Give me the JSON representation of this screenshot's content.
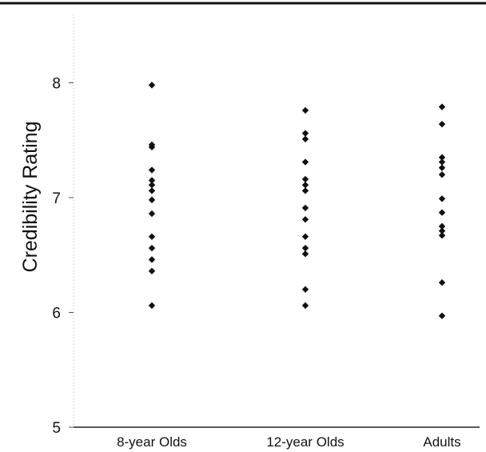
{
  "chart_data": {
    "type": "scatter",
    "title": "",
    "xlabel": "",
    "ylabel": "Credibility Rating",
    "categories": [
      "8-year Olds",
      "12-year Olds",
      "Adults"
    ],
    "ylim": [
      5,
      8.6
    ],
    "yticks": [
      5,
      6,
      7,
      8
    ],
    "grid": false,
    "legend": "none",
    "marker": "diamond",
    "marker_color": "#111111",
    "series": [
      {
        "category": "8-year Olds",
        "values": [
          7.98,
          7.46,
          7.44,
          7.24,
          7.15,
          7.11,
          7.06,
          6.98,
          6.86,
          6.66,
          6.56,
          6.46,
          6.36,
          6.06
        ]
      },
      {
        "category": "12-year Olds",
        "values": [
          7.76,
          7.56,
          7.51,
          7.31,
          7.16,
          7.11,
          7.06,
          6.91,
          6.81,
          6.66,
          6.56,
          6.51,
          6.2,
          6.06
        ]
      },
      {
        "category": "Adults",
        "values": [
          7.79,
          7.64,
          7.35,
          7.31,
          7.26,
          7.2,
          6.99,
          6.87,
          6.75,
          6.71,
          6.67,
          6.26,
          5.97
        ]
      }
    ]
  }
}
